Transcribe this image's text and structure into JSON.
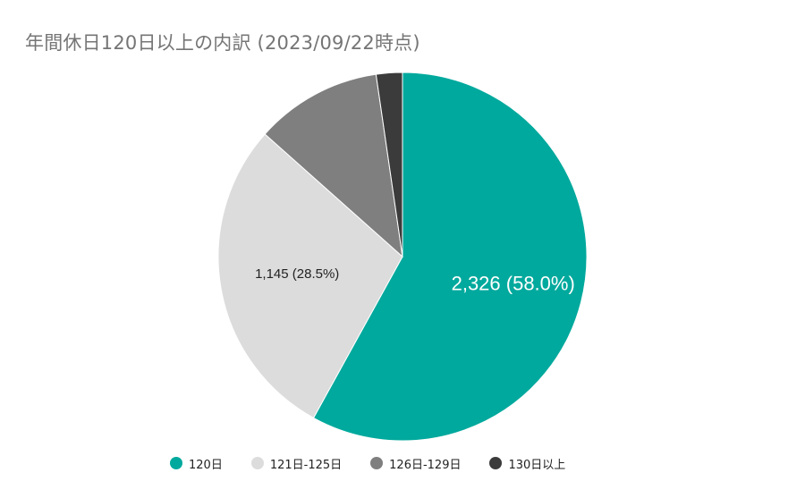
{
  "chart_data": {
    "type": "pie",
    "title": "年間休日120日以上の内訳 (2023/09/22時点)",
    "categories": [
      "120日",
      "121日-125日",
      "126日-129日",
      "130日以上"
    ],
    "values": [
      2326,
      1145,
      446,
      92
    ],
    "colors": [
      "#00A99D",
      "#DCDCDC",
      "#7F7F7F",
      "#3B3B3B"
    ],
    "data_labels": [
      {
        "index": 0,
        "text": "2,326 (58.0%)",
        "color": "#FFFFFF"
      },
      {
        "index": 1,
        "text": "1,145 (28.5%)",
        "color": "#222222"
      }
    ],
    "start_angle_deg": 0,
    "direction": "clockwise",
    "legend_position": "bottom"
  }
}
